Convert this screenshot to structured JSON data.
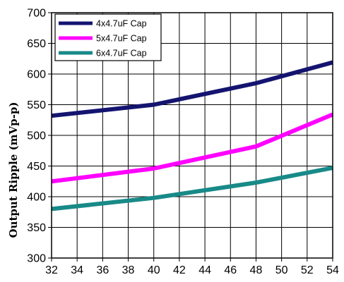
{
  "chart_data": {
    "type": "line",
    "title": "",
    "xlabel": "",
    "ylabel": "Output Ripple (mVp-p)",
    "x": [
      32,
      40,
      48,
      54
    ],
    "xlim": [
      32,
      54
    ],
    "ylim": [
      300,
      700
    ],
    "x_ticks": [
      "32",
      "34",
      "36",
      "38",
      "40",
      "42",
      "44",
      "46",
      "48",
      "50",
      "52",
      "54"
    ],
    "y_ticks": [
      "300",
      "350",
      "400",
      "450",
      "500",
      "550",
      "600",
      "650",
      "700"
    ],
    "grid": true,
    "legend_position": "top-left",
    "series": [
      {
        "name": "4x4.7uF Cap",
        "color": "#141470",
        "values": [
          532,
          550,
          585,
          619
        ]
      },
      {
        "name": "5x4.7uF Cap",
        "color": "#ff00ff",
        "values": [
          425,
          446,
          482,
          534
        ]
      },
      {
        "name": "6x4.7uF Cap",
        "color": "#188a88",
        "values": [
          380,
          398,
          423,
          447
        ]
      }
    ]
  }
}
